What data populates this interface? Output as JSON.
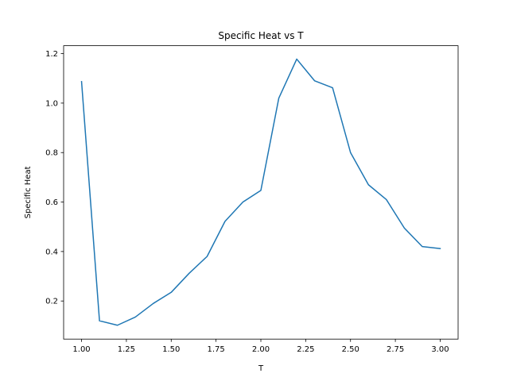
{
  "chart_data": {
    "type": "line",
    "title": "Specific Heat vs T",
    "xlabel": "T",
    "ylabel": "Specific Heat",
    "xlim": [
      0.9,
      3.1
    ],
    "ylim": [
      0.046,
      1.232
    ],
    "x_ticks": [
      1.0,
      1.25,
      1.5,
      1.75,
      2.0,
      2.25,
      2.5,
      2.75,
      3.0
    ],
    "x_tick_labels": [
      "1.00",
      "1.25",
      "1.50",
      "1.75",
      "2.00",
      "2.25",
      "2.50",
      "2.75",
      "3.00"
    ],
    "y_ticks": [
      0.2,
      0.4,
      0.6,
      0.8,
      1.0,
      1.2
    ],
    "y_tick_labels": [
      "0.2",
      "0.4",
      "0.6",
      "0.8",
      "1.0",
      "1.2"
    ],
    "grid": false,
    "legend": "none",
    "series": [
      {
        "color": "#1f77b4",
        "x": [
          1.0,
          1.1,
          1.2,
          1.3,
          1.4,
          1.5,
          1.6,
          1.7,
          1.8,
          1.9,
          2.0,
          2.1,
          2.2,
          2.3,
          2.4,
          2.5,
          2.6,
          2.7,
          2.8,
          2.9,
          3.0
        ],
        "y": [
          1.087,
          0.12,
          0.102,
          0.135,
          0.19,
          0.235,
          0.312,
          0.38,
          0.522,
          0.6,
          0.647,
          1.02,
          1.178,
          1.09,
          1.062,
          0.8,
          0.67,
          0.61,
          0.495,
          0.42,
          0.412
        ]
      }
    ]
  }
}
